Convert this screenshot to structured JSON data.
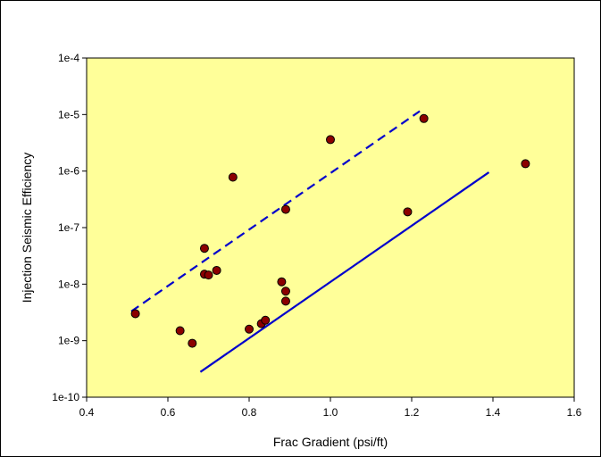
{
  "chart_data": {
    "type": "scatter",
    "xlabel": "Frac Gradient (psi/ft)",
    "ylabel": "Injection Seismic Efficiency",
    "xlim": [
      0.4,
      1.6
    ],
    "ylim": [
      1e-10,
      0.0001
    ],
    "y_scale": "log",
    "x_ticks": [
      "0.4",
      "0.6",
      "0.8",
      "1.0",
      "1.2",
      "1.4",
      "1.6"
    ],
    "y_ticks": [
      "1e-10",
      "1e-9",
      "1e-8",
      "1e-7",
      "1e-6",
      "1e-5",
      "1e-4"
    ],
    "grid": false,
    "plot_background": "#ffff99",
    "marker_color": "#8b0000",
    "line_color": "#0000cc",
    "points": [
      {
        "x": 0.52,
        "y": 3e-09
      },
      {
        "x": 0.63,
        "y": 1.5e-09
      },
      {
        "x": 0.66,
        "y": 9e-10
      },
      {
        "x": 0.69,
        "y": 4.3e-08
      },
      {
        "x": 0.69,
        "y": 1.5e-08
      },
      {
        "x": 0.7,
        "y": 1.45e-08
      },
      {
        "x": 0.72,
        "y": 1.75e-08
      },
      {
        "x": 0.76,
        "y": 7.8e-07
      },
      {
        "x": 0.8,
        "y": 1.6e-09
      },
      {
        "x": 0.83,
        "y": 2e-09
      },
      {
        "x": 0.84,
        "y": 2.3e-09
      },
      {
        "x": 0.88,
        "y": 1.1e-08
      },
      {
        "x": 0.89,
        "y": 7.5e-09
      },
      {
        "x": 0.89,
        "y": 5e-09
      },
      {
        "x": 0.89,
        "y": 2.1e-07
      },
      {
        "x": 1.0,
        "y": 3.6e-06
      },
      {
        "x": 1.19,
        "y": 1.9e-07
      },
      {
        "x": 1.23,
        "y": 8.5e-06
      },
      {
        "x": 1.48,
        "y": 1.35e-06
      }
    ],
    "trend_lines": [
      {
        "style": "dashed",
        "x": [
          0.51,
          1.22
        ],
        "y": [
          3.3e-09,
          1.15e-05
        ]
      },
      {
        "style": "solid",
        "x": [
          0.68,
          1.39
        ],
        "y": [
          2.8e-10,
          9.5e-07
        ]
      }
    ]
  }
}
